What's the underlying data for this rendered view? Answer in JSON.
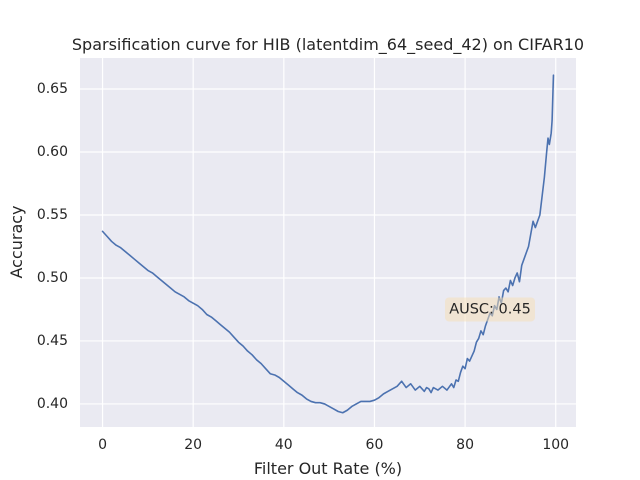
{
  "chart_data": {
    "type": "line",
    "title": "Sparsification curve for HIB (latentdim_64_seed_42) on CIFAR10",
    "xlabel": "Filter Out Rate (%)",
    "ylabel": "Accuracy",
    "xlim": [
      -4.975,
      104.475
    ],
    "ylim": [
      0.3817,
      0.6746
    ],
    "xticks": [
      0,
      20,
      40,
      60,
      80,
      100
    ],
    "xtick_labels": [
      "0",
      "20",
      "40",
      "60",
      "80",
      "100"
    ],
    "yticks": [
      0.4,
      0.45,
      0.5,
      0.55,
      0.6,
      0.65
    ],
    "ytick_labels": [
      "0.40",
      "0.45",
      "0.50",
      "0.55",
      "0.60",
      "0.65"
    ],
    "grid": true,
    "annotation": {
      "text": "AUSC: 0.45",
      "x": 85.5,
      "y": 0.475
    },
    "series": [
      {
        "x": [
          0,
          1,
          2,
          3,
          4,
          5,
          6,
          7,
          8,
          9,
          10,
          11,
          12,
          13,
          14,
          15,
          16,
          17,
          18,
          19,
          20,
          21,
          22,
          23,
          24,
          25,
          26,
          27,
          28,
          29,
          30,
          31,
          32,
          33,
          34,
          35,
          36,
          37,
          38,
          39,
          40,
          41,
          42,
          43,
          44,
          45,
          46,
          47,
          48,
          49,
          50,
          51,
          52,
          53,
          54,
          55,
          56,
          57,
          58,
          59,
          60,
          61,
          62,
          63,
          64,
          65,
          66,
          67,
          68,
          69,
          70,
          71,
          71.5,
          72,
          72.5,
          73,
          74,
          75,
          76,
          77,
          77.5,
          78,
          78.5,
          79,
          79.5,
          80,
          80.5,
          81,
          81.5,
          82,
          82.5,
          83,
          83.5,
          84,
          84.5,
          85,
          85.5,
          86,
          86.5,
          87,
          87.5,
          88,
          88.5,
          89,
          89.5,
          90,
          90.5,
          91,
          91.5,
          92,
          92.5,
          93,
          93.5,
          94,
          94.5,
          95,
          95.5,
          96,
          96.5,
          97,
          97.5,
          98,
          98.3,
          98.6,
          99,
          99.2,
          99.5
        ],
        "y": [
          0.537,
          0.533,
          0.529,
          0.526,
          0.524,
          0.521,
          0.518,
          0.515,
          0.512,
          0.509,
          0.506,
          0.504,
          0.501,
          0.498,
          0.495,
          0.492,
          0.489,
          0.487,
          0.485,
          0.482,
          0.48,
          0.478,
          0.475,
          0.471,
          0.469,
          0.466,
          0.463,
          0.46,
          0.457,
          0.453,
          0.449,
          0.446,
          0.442,
          0.439,
          0.435,
          0.432,
          0.428,
          0.424,
          0.423,
          0.421,
          0.418,
          0.415,
          0.412,
          0.409,
          0.407,
          0.404,
          0.402,
          0.401,
          0.401,
          0.4,
          0.398,
          0.396,
          0.394,
          0.393,
          0.395,
          0.398,
          0.4,
          0.402,
          0.402,
          0.402,
          0.403,
          0.405,
          0.408,
          0.41,
          0.412,
          0.414,
          0.418,
          0.413,
          0.416,
          0.411,
          0.414,
          0.41,
          0.413,
          0.412,
          0.409,
          0.413,
          0.411,
          0.414,
          0.411,
          0.416,
          0.413,
          0.419,
          0.418,
          0.425,
          0.43,
          0.428,
          0.436,
          0.434,
          0.438,
          0.442,
          0.449,
          0.452,
          0.458,
          0.455,
          0.462,
          0.467,
          0.472,
          0.47,
          0.478,
          0.475,
          0.485,
          0.48,
          0.49,
          0.492,
          0.489,
          0.498,
          0.494,
          0.5,
          0.504,
          0.497,
          0.51,
          0.515,
          0.52,
          0.525,
          0.535,
          0.545,
          0.54,
          0.545,
          0.55,
          0.565,
          0.58,
          0.6,
          0.611,
          0.606,
          0.615,
          0.625,
          0.661
        ],
        "color": "#4C72B0"
      }
    ]
  },
  "colors": {
    "plot_background": "#EAEAF2",
    "grid": "#FFFFFF",
    "line": "#4C72B0",
    "annotation_box": "#F5DEB3"
  }
}
